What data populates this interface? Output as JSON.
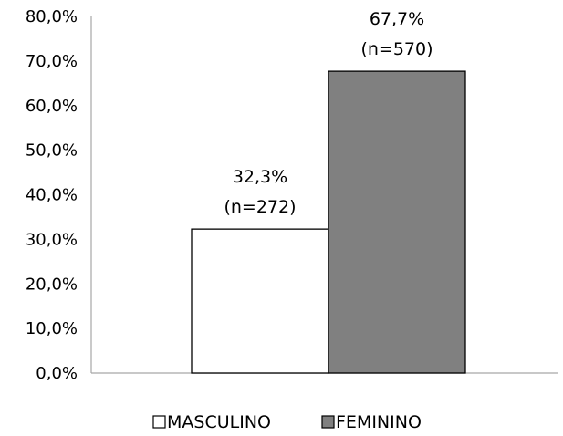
{
  "chart_data": {
    "type": "bar",
    "title": "",
    "xlabel": "",
    "ylabel": "",
    "ylim": [
      0,
      80
    ],
    "yticks": [
      {
        "value": 0,
        "label": "0,0%"
      },
      {
        "value": 10,
        "label": "10,0%"
      },
      {
        "value": 20,
        "label": "20,0%"
      },
      {
        "value": 30,
        "label": "30,0%"
      },
      {
        "value": 40,
        "label": "40,0%"
      },
      {
        "value": 50,
        "label": "50,0%"
      },
      {
        "value": 60,
        "label": "60,0%"
      },
      {
        "value": 70,
        "label": "70,0%"
      },
      {
        "value": 80,
        "label": "80,0%"
      }
    ],
    "grid": false,
    "legend_position": "bottom",
    "series": [
      {
        "name": "MASCULINO",
        "value": 32.3,
        "color": "#ffffff",
        "label_pct": "32,3%",
        "label_n": "(n=272)"
      },
      {
        "name": "FEMININO",
        "value": 67.7,
        "color": "#808080",
        "label_pct": "67,7%",
        "label_n": "(n=570)"
      }
    ]
  }
}
